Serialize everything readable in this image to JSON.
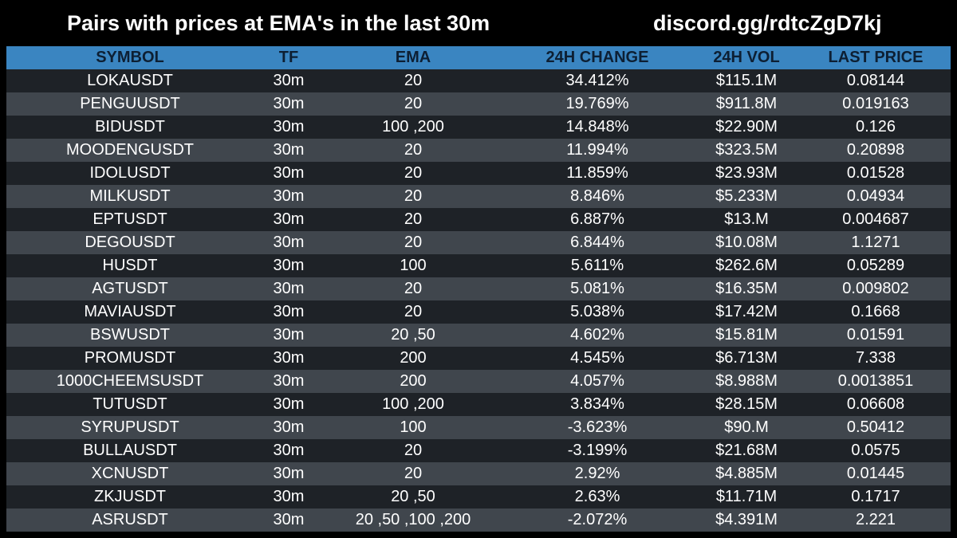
{
  "header": {
    "title": "Pairs with prices at EMA's in the last 30m",
    "link": "discord.gg/rdtcZgD7kj"
  },
  "colors": {
    "background": "#000000",
    "header_row": "#3a85c1",
    "header_text": "#0d1f33",
    "row_dark": "#1e2227",
    "row_light": "#40464d",
    "text": "#ffffff"
  },
  "table": {
    "columns": [
      "SYMBOL",
      "TF",
      "EMA",
      "24H CHANGE",
      "24H VOL",
      "LAST PRICE"
    ],
    "rows": [
      {
        "symbol": "LOKAUSDT",
        "tf": "30m",
        "ema": "20",
        "change": "34.412%",
        "vol": "$115.1M",
        "price": "0.08144"
      },
      {
        "symbol": "PENGUUSDT",
        "tf": "30m",
        "ema": "20",
        "change": "19.769%",
        "vol": "$911.8M",
        "price": "0.019163"
      },
      {
        "symbol": "BIDUSDT",
        "tf": "30m",
        "ema": "100 ,200",
        "change": "14.848%",
        "vol": "$22.90M",
        "price": "0.126"
      },
      {
        "symbol": "MOODENGUSDT",
        "tf": "30m",
        "ema": "20",
        "change": "11.994%",
        "vol": "$323.5M",
        "price": "0.20898"
      },
      {
        "symbol": "IDOLUSDT",
        "tf": "30m",
        "ema": "20",
        "change": "11.859%",
        "vol": "$23.93M",
        "price": "0.01528"
      },
      {
        "symbol": "MILKUSDT",
        "tf": "30m",
        "ema": "20",
        "change": "8.846%",
        "vol": "$5.233M",
        "price": "0.04934"
      },
      {
        "symbol": "EPTUSDT",
        "tf": "30m",
        "ema": "20",
        "change": "6.887%",
        "vol": "$13.M",
        "price": "0.004687"
      },
      {
        "symbol": "DEGOUSDT",
        "tf": "30m",
        "ema": "20",
        "change": "6.844%",
        "vol": "$10.08M",
        "price": "1.1271"
      },
      {
        "symbol": "HUSDT",
        "tf": "30m",
        "ema": "100",
        "change": "5.611%",
        "vol": "$262.6M",
        "price": "0.05289"
      },
      {
        "symbol": "AGTUSDT",
        "tf": "30m",
        "ema": "20",
        "change": "5.081%",
        "vol": "$16.35M",
        "price": "0.009802"
      },
      {
        "symbol": "MAVIAUSDT",
        "tf": "30m",
        "ema": "20",
        "change": "5.038%",
        "vol": "$17.42M",
        "price": "0.1668"
      },
      {
        "symbol": "BSWUSDT",
        "tf": "30m",
        "ema": "20 ,50",
        "change": "4.602%",
        "vol": "$15.81M",
        "price": "0.01591"
      },
      {
        "symbol": "PROMUSDT",
        "tf": "30m",
        "ema": "200",
        "change": "4.545%",
        "vol": "$6.713M",
        "price": "7.338"
      },
      {
        "symbol": "1000CHEEMSUSDT",
        "tf": "30m",
        "ema": "200",
        "change": "4.057%",
        "vol": "$8.988M",
        "price": "0.0013851"
      },
      {
        "symbol": "TUTUSDT",
        "tf": "30m",
        "ema": "100 ,200",
        "change": "3.834%",
        "vol": "$28.15M",
        "price": "0.06608"
      },
      {
        "symbol": "SYRUPUSDT",
        "tf": "30m",
        "ema": "100",
        "change": "-3.623%",
        "vol": "$90.M",
        "price": "0.50412"
      },
      {
        "symbol": "BULLAUSDT",
        "tf": "30m",
        "ema": "20",
        "change": "-3.199%",
        "vol": "$21.68M",
        "price": "0.0575"
      },
      {
        "symbol": "XCNUSDT",
        "tf": "30m",
        "ema": "20",
        "change": "2.92%",
        "vol": "$4.885M",
        "price": "0.01445"
      },
      {
        "symbol": "ZKJUSDT",
        "tf": "30m",
        "ema": "20 ,50",
        "change": "2.63%",
        "vol": "$11.71M",
        "price": "0.1717"
      },
      {
        "symbol": "ASRUSDT",
        "tf": "30m",
        "ema": "20 ,50 ,100 ,200",
        "change": "-2.072%",
        "vol": "$4.391M",
        "price": "2.221"
      }
    ]
  }
}
